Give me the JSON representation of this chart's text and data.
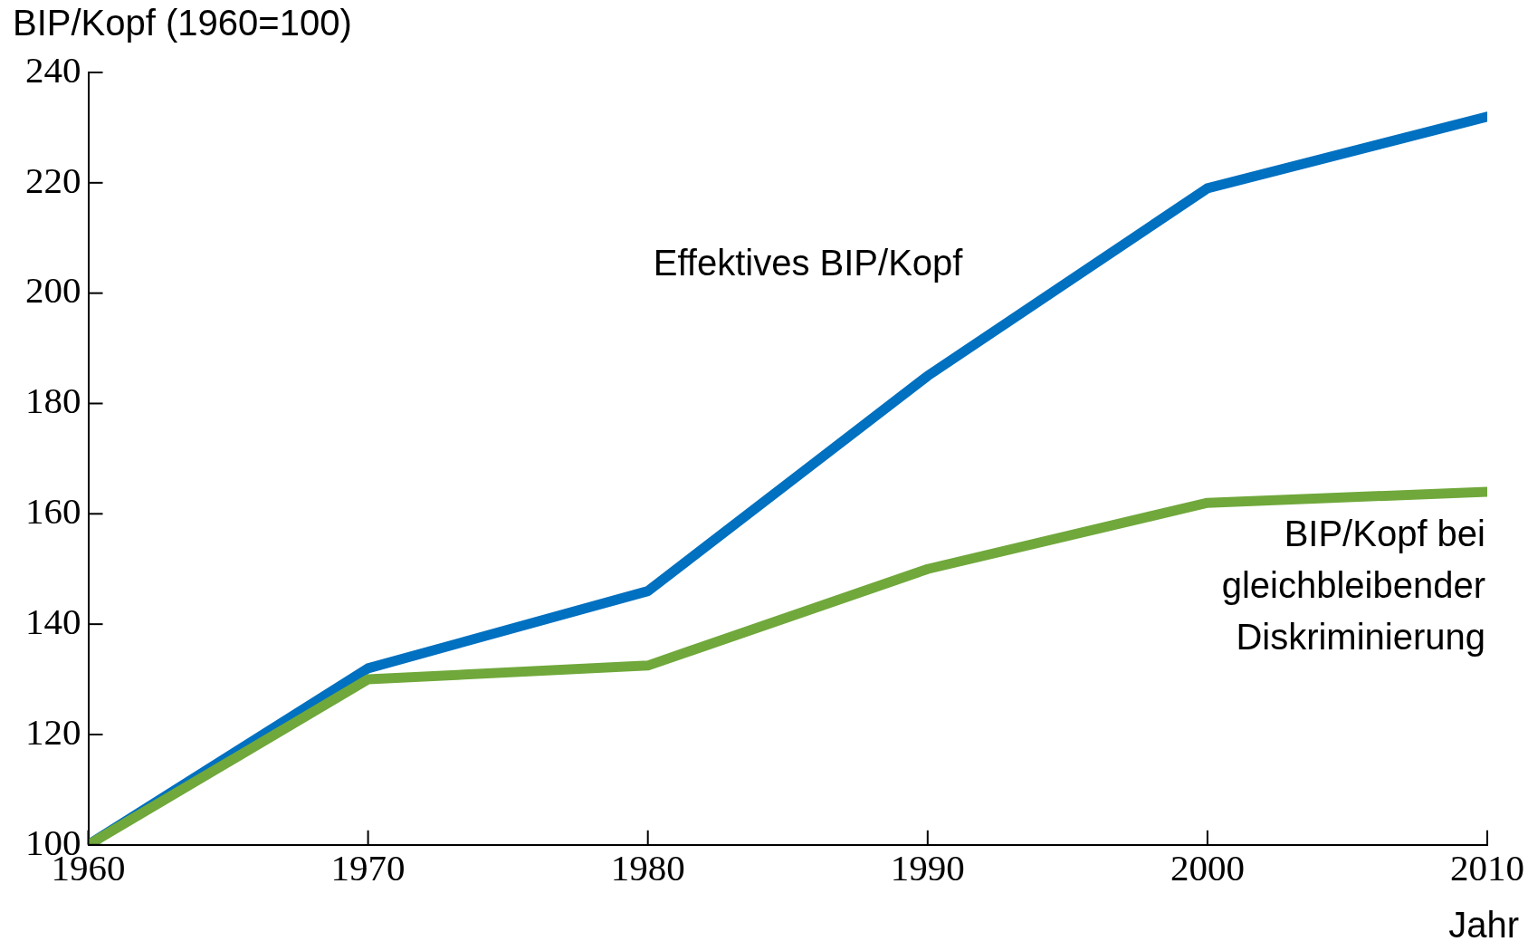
{
  "chart_data": {
    "type": "line",
    "xlabel": "Jahr",
    "ylabel": "BIP/Kopf (1960=100)",
    "x": [
      1960,
      1970,
      1980,
      1990,
      2000,
      2010
    ],
    "series": [
      {
        "name": "Effektives BIP/Kopf",
        "color": "#0070c0",
        "values": [
          100,
          132,
          146,
          185,
          219,
          232
        ]
      },
      {
        "name": "BIP/Kopf bei gleichbleibender Diskriminierung",
        "color": "#70a83b",
        "values": [
          100,
          130,
          132.5,
          150,
          162,
          164
        ]
      }
    ],
    "xlim": [
      1960,
      2010
    ],
    "xticks": [
      1960,
      1970,
      1980,
      1990,
      2000,
      2010
    ],
    "ylim": [
      100,
      240
    ],
    "yticks": [
      100,
      120,
      140,
      160,
      180,
      200,
      220,
      240
    ],
    "grid": false,
    "legend": false,
    "marker": "none",
    "line_style": "solid"
  }
}
